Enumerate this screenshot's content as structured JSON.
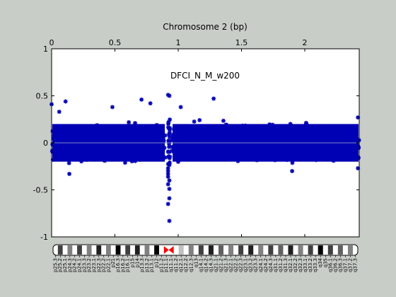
{
  "chart_data": {
    "type": "scatter",
    "xlabel": "Chromosome 2 (bp)",
    "annotation": "DFCI_N_M_w200",
    "x_unit_note": "",
    "xlim": [
      0,
      2.43
    ],
    "ylim": [
      -1,
      1
    ],
    "x_ticks": [
      0,
      0.5,
      1,
      1.5,
      2
    ],
    "x_tick_labels": [
      "0",
      "0.5",
      "1",
      "1.5",
      "2"
    ],
    "y_ticks": [
      1,
      0.5,
      0,
      -0.5,
      -1
    ],
    "y_tick_labels": [
      "1",
      "0.5",
      "0",
      "-0.5",
      "-1"
    ],
    "grid": false,
    "marker": "asterisk",
    "point_color": "#0000b4",
    "baseline_color": "#7f8cc8",
    "axes_background": "#ffffff",
    "figure_background": "#c8cdc8",
    "series": [
      {
        "name": "",
        "band_range": [
          -0.25,
          0.25
        ],
        "density_note": "dense band of points between about -0.25 and 0.25 across entire chromosome",
        "outliers": [
          {
            "x": 0.0,
            "y": 0.41
          },
          {
            "x": 0.11,
            "y": 0.44
          },
          {
            "x": 0.06,
            "y": 0.33
          },
          {
            "x": 0.14,
            "y": -0.33
          },
          {
            "x": 0.48,
            "y": 0.38
          },
          {
            "x": 0.71,
            "y": 0.46
          },
          {
            "x": 0.78,
            "y": 0.42
          },
          {
            "x": 0.92,
            "y": 0.51
          },
          {
            "x": 0.93,
            "y": 0.5
          },
          {
            "x": 0.92,
            "y": -0.27
          },
          {
            "x": 0.92,
            "y": -0.3
          },
          {
            "x": 0.92,
            "y": -0.33
          },
          {
            "x": 0.92,
            "y": -0.36
          },
          {
            "x": 0.93,
            "y": -0.4
          },
          {
            "x": 0.92,
            "y": -0.44
          },
          {
            "x": 0.93,
            "y": -0.49
          },
          {
            "x": 0.93,
            "y": -0.59
          },
          {
            "x": 0.92,
            "y": -0.65
          },
          {
            "x": 0.93,
            "y": -0.83
          },
          {
            "x": 1.02,
            "y": 0.38
          },
          {
            "x": 1.28,
            "y": 0.47
          },
          {
            "x": 1.9,
            "y": -0.3
          },
          {
            "x": 2.42,
            "y": 0.27
          },
          {
            "x": 2.42,
            "y": -0.27
          }
        ]
      }
    ]
  },
  "ideogram": {
    "band_labels": [
      "p25.3",
      "p25.2",
      "p25.1",
      "p24.3",
      "p24.2",
      "p24.1",
      "p23.3",
      "p23.2",
      "p23.1",
      "p22.3",
      "p22.2",
      "p22.1",
      "p21",
      "p16.3",
      "p16.2",
      "p16.1",
      "p15",
      "p14",
      "p13.3",
      "p13.2",
      "p13.1",
      "p12",
      "p11.2",
      "p11.1",
      "q11.1",
      "q11.2",
      "q12.1",
      "q12.2",
      "q12.3",
      "q13",
      "q14.1",
      "q14.2",
      "q14.3",
      "q21.1",
      "q21.2",
      "q21.3",
      "q22.1",
      "q22.2",
      "q22.3",
      "q23.1",
      "q23.2",
      "q23.3",
      "q24.1",
      "q24.2",
      "q24.3",
      "q31.1",
      "q31.2",
      "q31.3",
      "q32.1",
      "q32.2",
      "q32.3",
      "q33.1",
      "q33.2",
      "q33.3",
      "q34",
      "q35",
      "q36.1",
      "q36.2",
      "q36.3",
      "q37.1",
      "q37.2",
      "q37.3"
    ],
    "band_colors": [
      "#ffffff",
      "#404040",
      "#ffffff",
      "#808080",
      "#ffffff",
      "#404040",
      "#ffffff",
      "#808080",
      "#ffffff",
      "#202020",
      "#ffffff",
      "#808080",
      "#ffffff",
      "#000000",
      "#ffffff",
      "#404040",
      "#ffffff",
      "#202020",
      "#ffffff",
      "#808080",
      "#ffffff",
      "#000000",
      "#ffffff",
      "#ff0000",
      "#ff0000",
      "#ffffff",
      "#c0c0c0",
      "#ffffff",
      "#808080",
      "#ffffff",
      "#404040",
      "#ffffff",
      "#202020",
      "#ffffff",
      "#606060",
      "#ffffff",
      "#808080",
      "#ffffff",
      "#404040",
      "#ffffff",
      "#202020",
      "#ffffff",
      "#808080",
      "#ffffff",
      "#404040",
      "#ffffff",
      "#606060",
      "#ffffff",
      "#202020",
      "#ffffff",
      "#808080",
      "#ffffff",
      "#404040",
      "#ffffff",
      "#000000",
      "#ffffff",
      "#404040",
      "#ffffff",
      "#606060",
      "#ffffff",
      "#808080",
      "#ffffff"
    ],
    "centromere_color": "#ff0000"
  }
}
